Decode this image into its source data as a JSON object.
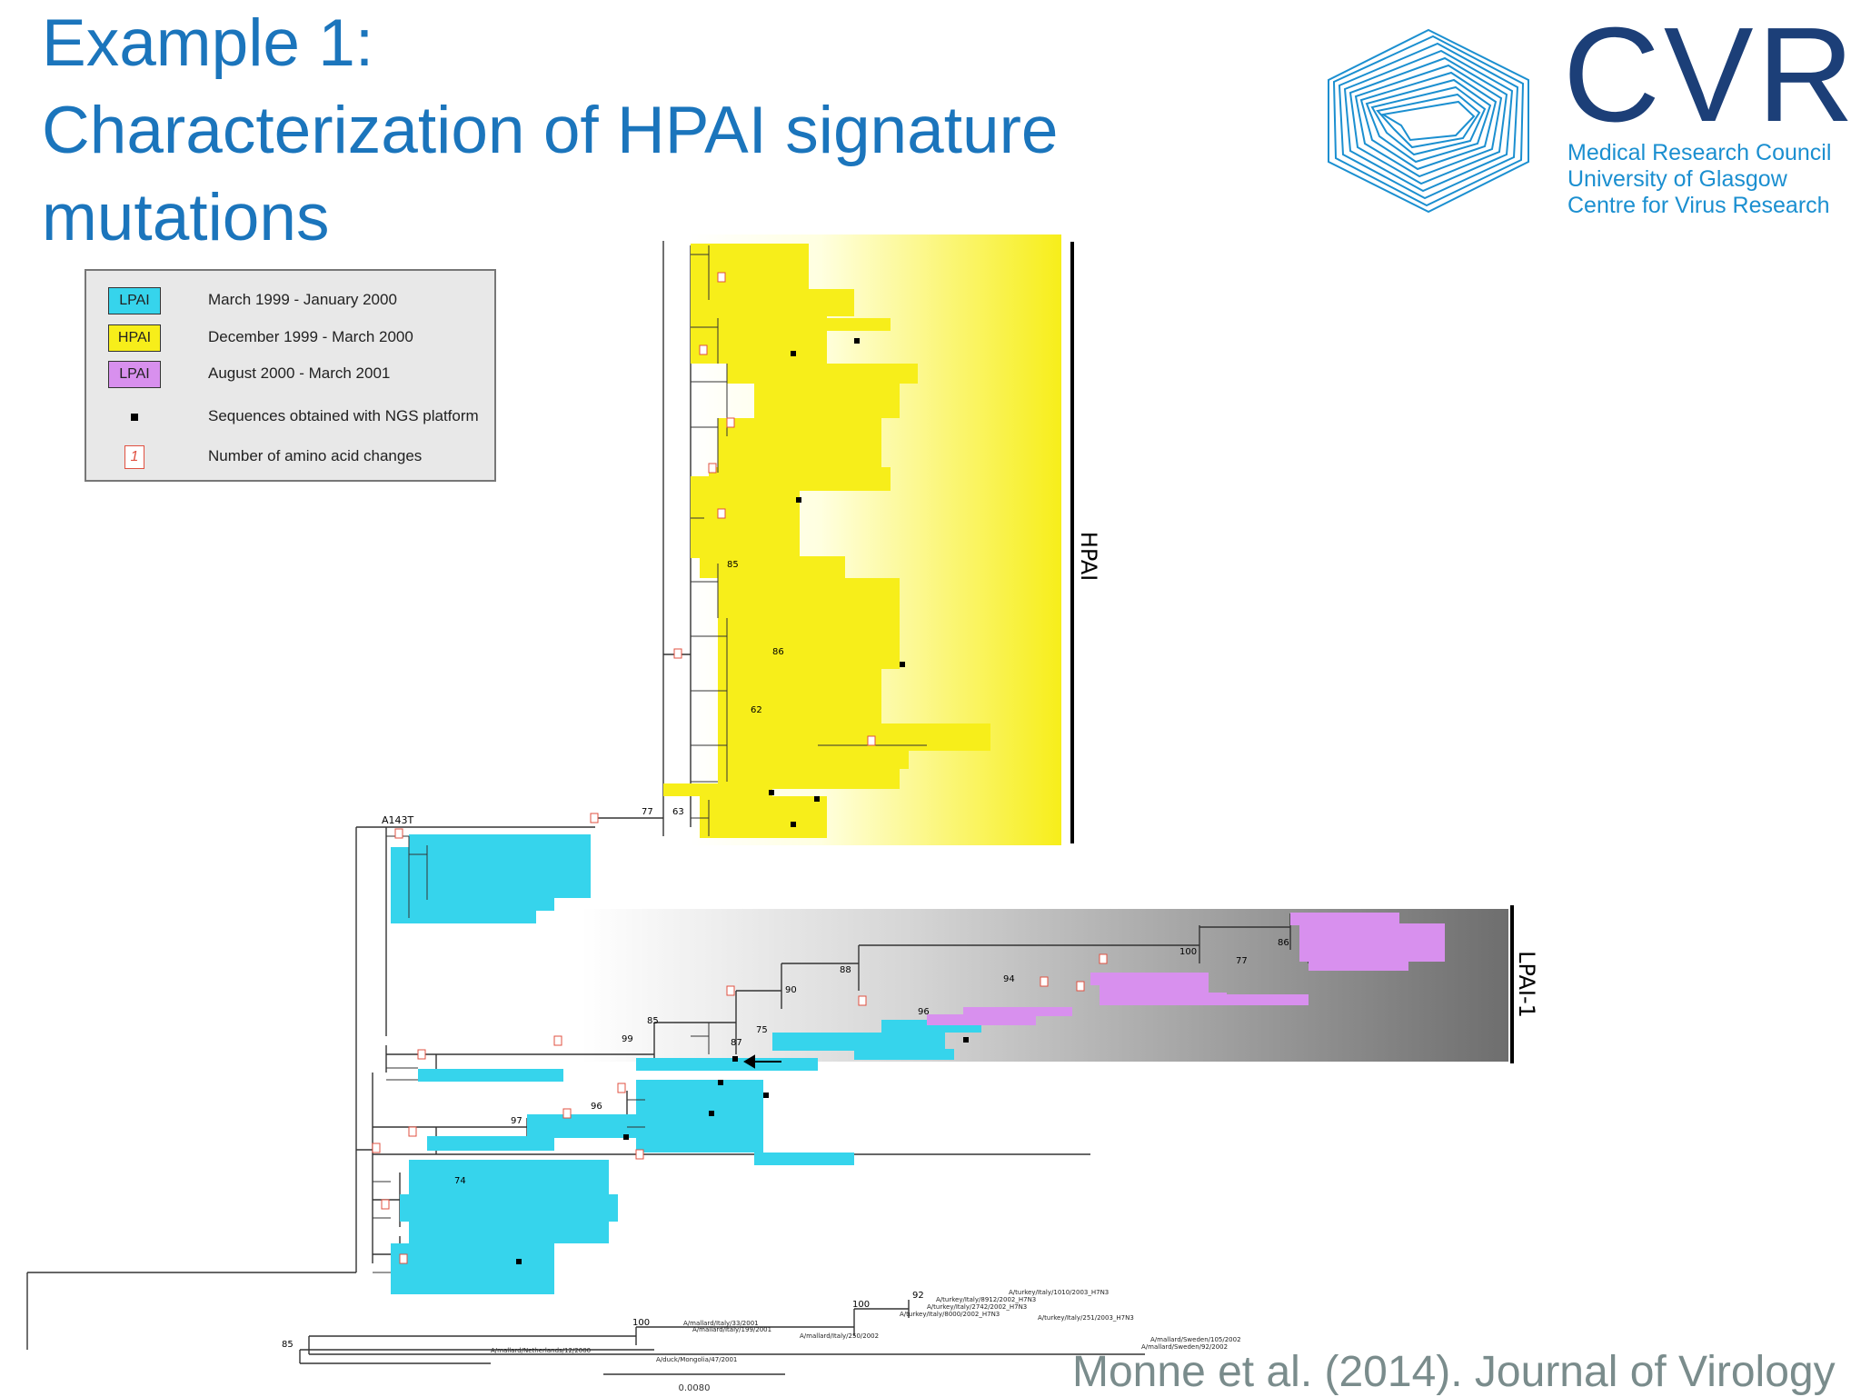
{
  "slide": {
    "title_lines": [
      "Example 1:",
      "Characterization of HPAI signature",
      "mutations"
    ],
    "citation": "Monne et al. (2014). Journal of Virology"
  },
  "logo": {
    "word": "CVR",
    "sub_lines": [
      "Medical Research Council",
      "University of Glasgow",
      "Centre for Virus Research"
    ],
    "colors": {
      "word": "#1c3f78",
      "sub": "#1b8fd0",
      "hexagon": "#1b8fd0"
    }
  },
  "legend": {
    "items": [
      {
        "swatch_label": "LPAI",
        "text": "March 1999 - January 2000",
        "color": "#36d4ec"
      },
      {
        "swatch_label": "HPAI",
        "text": "December 1999 - March 2000",
        "color": "#f7ee1a"
      },
      {
        "swatch_label": "LPAI",
        "text": "August 2000 - March 2001",
        "color": "#d890ee"
      }
    ],
    "ngs_text": "Sequences obtained with NGS platform",
    "aa_marker": "1",
    "aa_text": "Number of amino acid changes"
  },
  "tree": {
    "clade_hpai": "HPAI",
    "clade_lpai1": "LPAI-1",
    "mutation_label": "A143T",
    "scale_value": "0.0080",
    "bootstrap": {
      "b77": "77",
      "b63": "63",
      "b85a": "85",
      "b86": "86",
      "b62": "62",
      "b100a": "100",
      "b86b": "86",
      "b77b": "77",
      "b88": "88",
      "b94": "94",
      "b90": "90",
      "b96": "96",
      "b85b": "85",
      "b99": "99",
      "b75": "75",
      "b87": "87",
      "b97": "97",
      "b96b": "96",
      "b74": "74",
      "b92": "92",
      "b100b": "100",
      "b100c": "100",
      "b85c": "85"
    },
    "outgroup_labels": {
      "o1": "A/turkey/Italy/1010/2003_H7N3",
      "o2": "A/turkey/Italy/8912/2002_H7N3",
      "o3": "A/turkey/Italy/2742/2002_H7N3",
      "o4": "A/turkey/Italy/8000/2002_H7N3",
      "o5": "A/turkey/Italy/251/2003_H7N3",
      "o6": "A/mallard/Sweden/105/2002",
      "o7": "A/mallard/Sweden/92/2002",
      "o8": "A/mallard/Italy/33/2001",
      "o9": "A/mallard/Italy/199/2001",
      "o10": "A/mallard/Italy/250/2002",
      "o11": "A/mallard/Netherlands/12/2000",
      "o12": "A/duck/Mongolia/47/2001"
    },
    "colors": {
      "hpai": "#f7ee1a",
      "lpai_early": "#36d4ec",
      "lpai_late": "#d890ee",
      "marker": "#e05040",
      "gradient_dark": "#6e6e6e"
    }
  }
}
